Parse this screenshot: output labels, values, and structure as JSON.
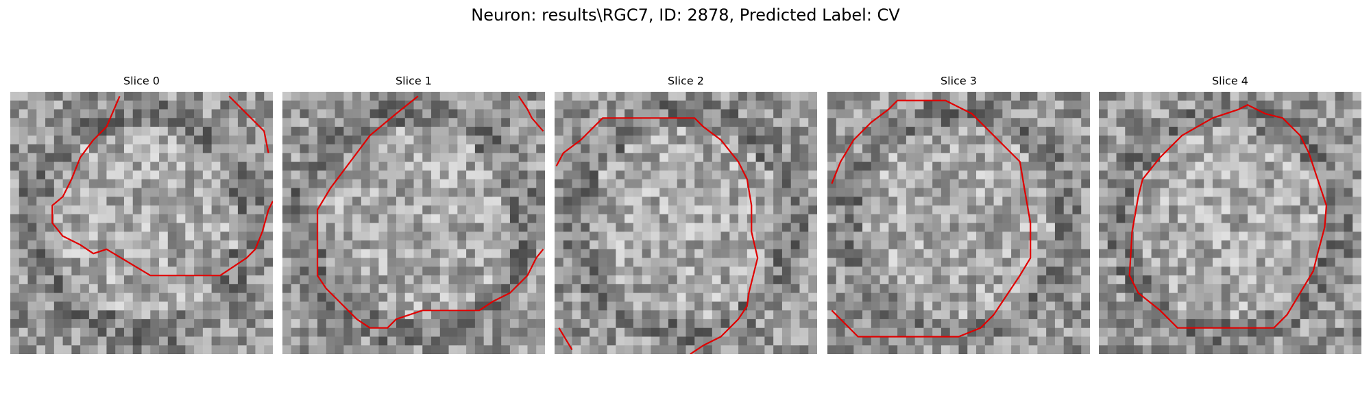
{
  "header": {
    "title": "Neuron: results\\RGC7, ID: 2878, Predicted Label: CV"
  },
  "panels": [
    {
      "title": "Slice 0"
    },
    {
      "title": "Slice 1"
    },
    {
      "title": "Slice 2"
    },
    {
      "title": "Slice 3"
    },
    {
      "title": "Slice 4"
    }
  ]
}
